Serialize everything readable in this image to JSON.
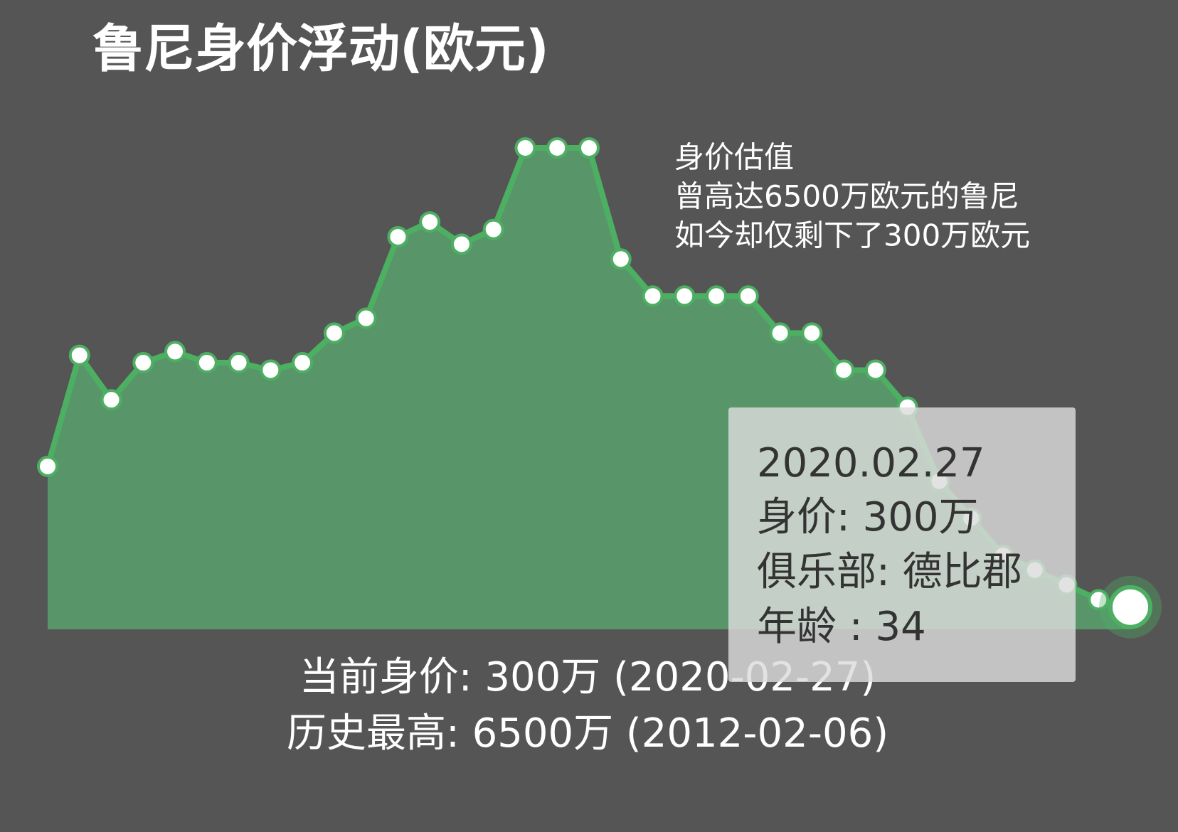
{
  "chart_data": {
    "type": "area",
    "title": "鲁尼身价浮动(欧元)",
    "annotation": [
      "身价估值",
      "曾高达6500万欧元的鲁尼",
      "如今却仅剩下了300万欧元"
    ],
    "summary": [
      "当前身价: 300万 (2020-02-27)",
      "历史最高: 6500万 (2012-02-06)"
    ],
    "tooltip": [
      "2020.02.27",
      "身价: 300万",
      "俱乐部: 德比郡",
      "年龄 : 34"
    ],
    "categories": [
      null,
      null,
      null,
      null,
      null,
      null,
      null,
      null,
      null,
      null,
      null,
      null,
      null,
      null,
      null,
      null,
      null,
      null,
      null,
      null,
      null,
      null,
      null,
      null,
      null,
      null,
      null,
      null,
      null,
      null,
      null,
      null,
      null,
      null,
      null
    ],
    "series": [
      {
        "color": "#4caf62",
        "area_color": "#58966a",
        "values": [
          2200,
          3700,
          3100,
          3600,
          3750,
          3600,
          3600,
          3500,
          3600,
          4000,
          4200,
          5300,
          5500,
          5200,
          5400,
          6500,
          6500,
          6500,
          5000,
          4500,
          4500,
          4500,
          4500,
          4000,
          4000,
          3500,
          3500,
          3000,
          2000,
          1500,
          1000,
          800,
          600,
          400,
          300
        ]
      }
    ]
  }
}
